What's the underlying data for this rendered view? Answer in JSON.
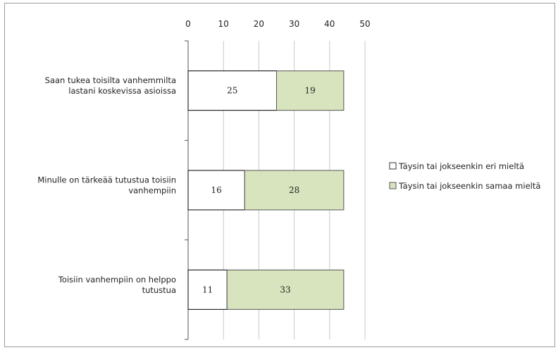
{
  "chart_data": {
    "type": "bar",
    "orientation": "horizontal",
    "stacked": true,
    "categories": [
      [
        "Saan tukea toisilta vanhemmilta",
        "lastani koskevissa asioissa"
      ],
      [
        "Minulle on tärkeää tutustua toisiin",
        "vanhempiin"
      ],
      [
        "Toisiin vanhempiin on helppo",
        "tutustua"
      ]
    ],
    "series": [
      {
        "name": "Täysin tai jokseenkin eri mieltä",
        "color": "#ffffff",
        "values": [
          25,
          16,
          11
        ]
      },
      {
        "name": "Täysin tai jokseenkin samaa mieltä",
        "color": "#d7e4bd",
        "values": [
          19,
          28,
          33
        ]
      }
    ],
    "xlim": [
      0,
      50
    ],
    "ticks": [
      0,
      10,
      20,
      30,
      40,
      50
    ],
    "axis_position": "top",
    "grid": true,
    "legend_position": "right",
    "data_labels": true
  }
}
